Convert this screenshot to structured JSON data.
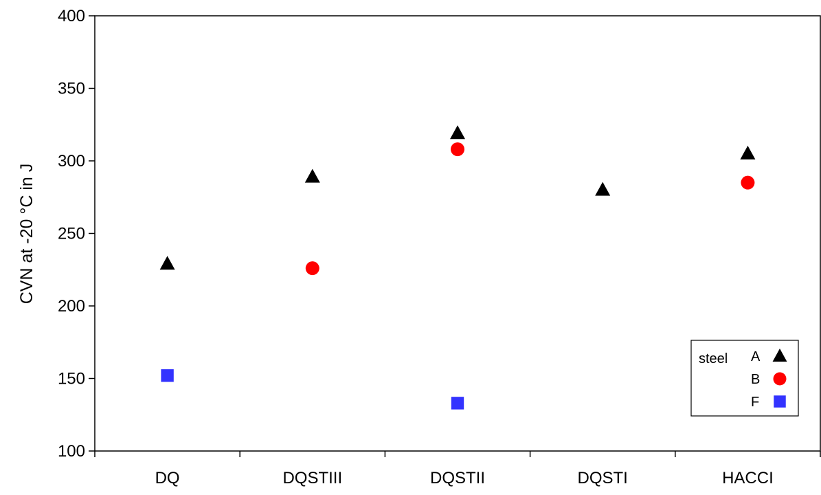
{
  "chart_data": {
    "type": "scatter",
    "title": "",
    "xlabel": "",
    "ylabel": "CVN at -20 °C in J",
    "categories": [
      "DQ",
      "DQSTIII",
      "DQSTII",
      "DQSTI",
      "HACCI"
    ],
    "ylim": [
      100,
      400
    ],
    "yticks": [
      100,
      150,
      200,
      250,
      300,
      350,
      400
    ],
    "grid": false,
    "legend_position": "bottom-right",
    "legend_title": "steel",
    "series": [
      {
        "name": "A",
        "marker": "triangle",
        "color": "#000000",
        "values": [
          229,
          289,
          319,
          280,
          305
        ]
      },
      {
        "name": "B",
        "marker": "circle",
        "color": "#ff0000",
        "values": [
          null,
          226,
          308,
          null,
          285
        ]
      },
      {
        "name": "F",
        "marker": "square",
        "color": "#3333ff",
        "values": [
          152,
          null,
          133,
          null,
          null
        ]
      }
    ]
  }
}
